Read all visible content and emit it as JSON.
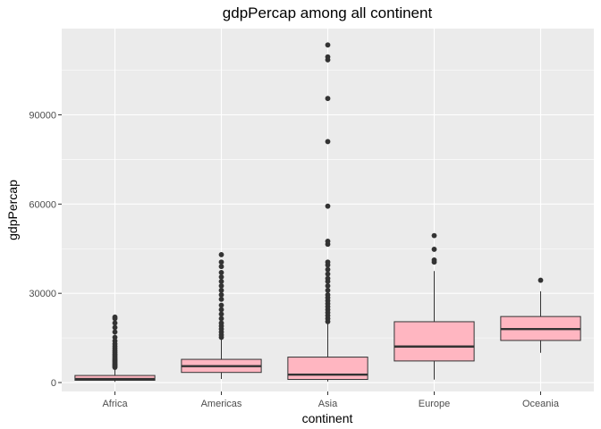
{
  "chart_data": {
    "type": "box",
    "title": "gdpPercap among all continent",
    "xlabel": "continent",
    "ylabel": "gdpPercap",
    "categories": [
      "Africa",
      "Americas",
      "Asia",
      "Europe",
      "Oceania"
    ],
    "ylim": [
      -3000,
      119000
    ],
    "yticks": [
      0,
      30000,
      60000,
      90000
    ],
    "ytick_labels": [
      "0",
      "30000",
      "60000",
      "90000"
    ],
    "grid": true,
    "colors": {
      "fill": "#ffb6c1",
      "panel": "#ebebeb",
      "grid": "#ffffff",
      "stroke": "#333333"
    },
    "boxes": [
      {
        "category": "Africa",
        "whisker_low": 240,
        "q1": 760,
        "median": 1200,
        "q3": 2380,
        "whisker_high": 4800,
        "outliers": [
          5100,
          5400,
          5800,
          6100,
          6500,
          6900,
          7300,
          7700,
          8100,
          8600,
          9100,
          9600,
          10200,
          10800,
          11500,
          12200,
          13000,
          14000,
          15200,
          17000,
          18500,
          20000,
          21500,
          22000
        ]
      },
      {
        "category": "Americas",
        "whisker_low": 1200,
        "q1": 3400,
        "median": 5500,
        "q3": 7800,
        "whisker_high": 14500,
        "outliers": [
          15200,
          16000,
          17000,
          18000,
          19000,
          20000,
          21500,
          23000,
          24500,
          26000,
          28000,
          29500,
          31000,
          32500,
          34000,
          35500,
          37000,
          39000,
          40500,
          43000
        ]
      },
      {
        "category": "Asia",
        "whisker_low": 330,
        "q1": 1050,
        "median": 2650,
        "q3": 8550,
        "whisker_high": 19800,
        "outliers": [
          20500,
          21500,
          22500,
          23500,
          24500,
          25500,
          26500,
          27500,
          28500,
          29500,
          31000,
          32500,
          34000,
          35000,
          36500,
          38000,
          39500,
          40500,
          46500,
          47500,
          59300,
          81000,
          95500,
          108500,
          109500,
          113500
        ]
      },
      {
        "category": "Europe",
        "whisker_low": 970,
        "q1": 7250,
        "median": 12100,
        "q3": 20450,
        "whisker_high": 37500,
        "outliers": [
          40500,
          41200,
          44800,
          49400
        ]
      },
      {
        "category": "Oceania",
        "whisker_low": 10000,
        "q1": 14150,
        "median": 17980,
        "q3": 22200,
        "whisker_high": 30700,
        "outliers": [
          34400
        ]
      }
    ]
  }
}
